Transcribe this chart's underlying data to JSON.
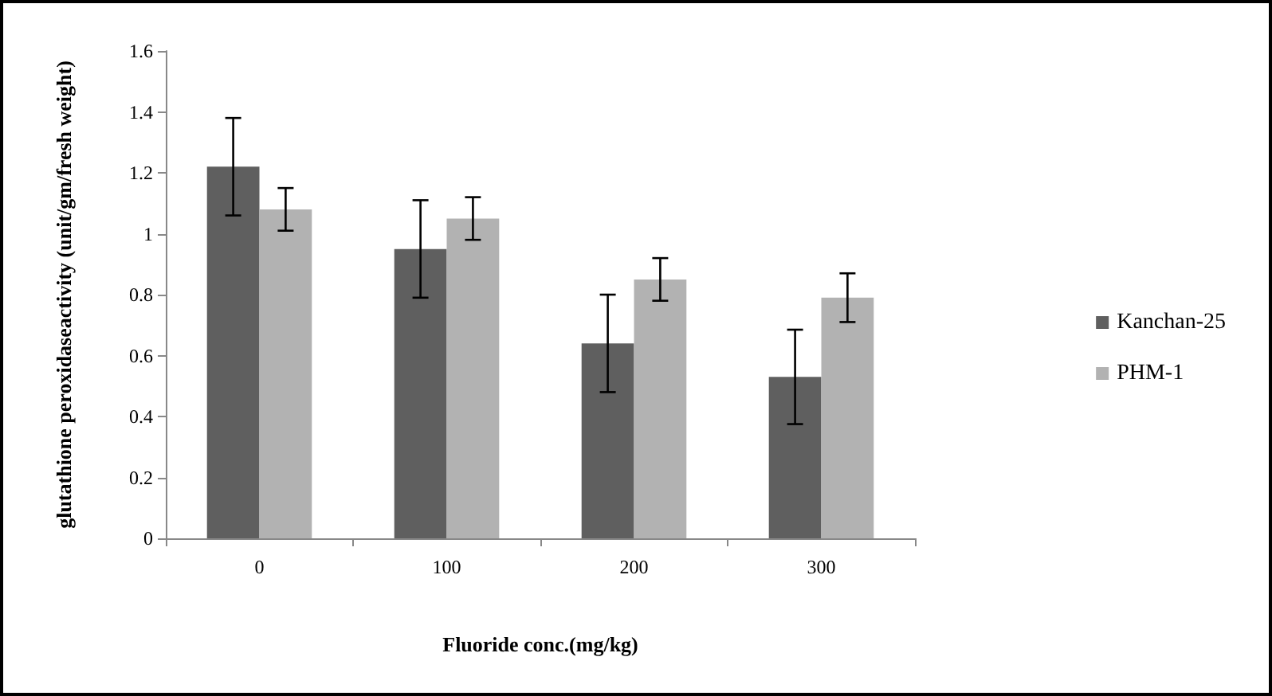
{
  "chart_data": {
    "type": "bar",
    "xlabel": "Fluoride conc.(mg/kg)",
    "ylabel": "glutathione peroxidaseactivity (unit/gm/fresh weight)",
    "categories": [
      "0",
      "100",
      "200",
      "300"
    ],
    "series": [
      {
        "name": "Kanchan-25",
        "color": "#5f5f5f",
        "values": [
          1.22,
          0.95,
          0.64,
          0.53
        ],
        "errors": [
          0.16,
          0.16,
          0.16,
          0.155
        ]
      },
      {
        "name": "PHM-1",
        "color": "#b2b2b2",
        "values": [
          1.08,
          1.05,
          0.85,
          0.79
        ],
        "errors": [
          0.07,
          0.07,
          0.07,
          0.08
        ]
      }
    ],
    "ylim": [
      0,
      1.6
    ],
    "yticks": [
      0,
      0.2,
      0.4,
      0.6,
      0.8,
      1,
      1.2,
      1.4,
      1.6
    ],
    "grid": false,
    "legend": "right"
  }
}
